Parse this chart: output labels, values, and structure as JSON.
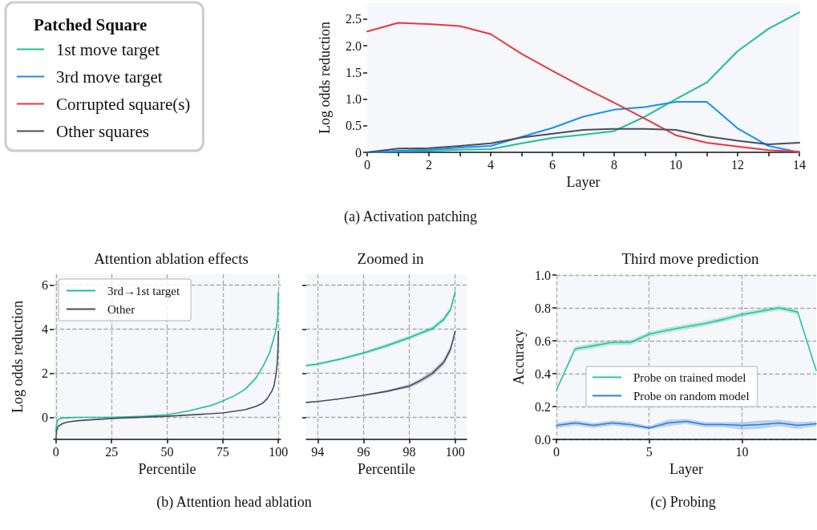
{
  "chart_data": [
    {
      "type": "line",
      "xlabel": "Layer",
      "ylabel": "Log odds reduction",
      "legend_title": "Patched Square",
      "legend": "left",
      "marker": "none",
      "grid": false,
      "x": [
        0,
        1,
        2,
        3,
        4,
        5,
        6,
        7,
        8,
        9,
        10,
        11,
        12,
        13,
        14
      ],
      "xlim": [
        0,
        14
      ],
      "xticks": [
        0,
        {
          "value": 1,
          "label": null
        },
        2,
        {
          "value": 3,
          "label": null
        },
        4,
        {
          "value": 5,
          "label": null
        },
        6,
        {
          "value": 7,
          "label": null
        },
        8,
        {
          "value": 9,
          "label": null
        },
        10,
        {
          "value": 11,
          "label": null
        },
        12,
        {
          "value": 13,
          "label": null
        },
        14
      ],
      "ylim": [
        0,
        2.8
      ],
      "yticks": [
        {
          "value": 0,
          "label": "0"
        },
        0.5,
        {
          "value": 1,
          "label": "1.0"
        },
        1.5,
        {
          "value": 2,
          "label": "2.0"
        },
        2.5
      ],
      "series": [
        {
          "name": "1st move target",
          "color": "#1fbf95",
          "values": [
            0,
            0.02,
            0.03,
            0.05,
            0.06,
            0.17,
            0.27,
            0.33,
            0.4,
            0.67,
            1.0,
            1.31,
            1.9,
            2.32,
            2.63
          ]
        },
        {
          "name": "3rd move target",
          "color": "#1a8cff",
          "values": [
            0,
            0.03,
            0.05,
            0.09,
            0.12,
            0.29,
            0.46,
            0.67,
            0.8,
            0.85,
            0.95,
            0.95,
            0.45,
            0.12,
            0
          ]
        },
        {
          "name": "Corrupted square(s)",
          "color": "#e8383d",
          "values": [
            2.27,
            2.43,
            2.41,
            2.37,
            2.22,
            1.85,
            1.53,
            1.22,
            0.93,
            0.63,
            0.32,
            0.18,
            0.11,
            0.04,
            0.01
          ]
        },
        {
          "name": "Other squares",
          "color": "#4a4f5a",
          "values": [
            0,
            0.07,
            0.08,
            0.12,
            0.17,
            0.28,
            0.35,
            0.42,
            0.44,
            0.44,
            0.42,
            0.3,
            0.22,
            0.15,
            0.18
          ]
        }
      ],
      "annotations": [
        "(a) Activation patching"
      ]
    },
    {
      "type": "line",
      "title": "Attention ablation effects",
      "xlabel": "Percentile",
      "ylabel": "Log odds reduction",
      "legend": "top left",
      "marker": "none",
      "grid": true,
      "xlim": [
        -1,
        101
      ],
      "xticks": [
        0,
        25,
        50,
        75,
        100
      ],
      "ylim": [
        -1,
        6.5
      ],
      "yticks": [
        0,
        2,
        4,
        6
      ],
      "series": [
        {
          "name": "3rd→1st target",
          "color": "#1fbf95",
          "x": [
            0,
            0.3,
            1,
            3,
            10,
            25,
            40,
            50,
            60,
            70,
            75,
            80,
            85,
            90,
            93,
            96,
            98,
            99,
            99.7,
            100
          ],
          "values": [
            -0.65,
            -0.3,
            -0.1,
            -0.03,
            0,
            0,
            0.05,
            0.12,
            0.3,
            0.55,
            0.75,
            0.97,
            1.27,
            1.8,
            2.3,
            2.92,
            3.62,
            4.03,
            4.6,
            5.7
          ]
        },
        {
          "name": "Other",
          "color": "#4a4f5a",
          "x": [
            0,
            0.3,
            1,
            3,
            5,
            10,
            25,
            50,
            75,
            85,
            90,
            93,
            95,
            97,
            98,
            99,
            99.5,
            99.8,
            100
          ],
          "values": [
            -1.0,
            -0.6,
            -0.4,
            -0.28,
            -0.22,
            -0.15,
            -0.05,
            0.05,
            0.2,
            0.35,
            0.5,
            0.65,
            0.85,
            1.18,
            1.42,
            2.0,
            2.5,
            3.1,
            3.9
          ]
        }
      ],
      "annotations": [
        "(b) Attention head ablation"
      ]
    },
    {
      "type": "line",
      "title": "Zoomed in",
      "xlabel": "Percentile",
      "tick_labels": "x",
      "marker": "none",
      "grid": true,
      "xlim": [
        93.5,
        100.5
      ],
      "xticks": [
        94,
        96,
        98,
        100
      ],
      "ylim": [
        -1,
        6.5
      ],
      "yticks": [
        0,
        2,
        4,
        6
      ],
      "series": [
        {
          "color": "#1fbf95",
          "x": [
            93.5,
            94,
            95,
            96,
            97,
            98,
            99,
            99.5,
            99.8,
            100
          ],
          "values": [
            2.35,
            2.42,
            2.65,
            2.92,
            3.25,
            3.62,
            4.03,
            4.45,
            4.9,
            5.7
          ],
          "lower": [
            2.3,
            2.37,
            2.59,
            2.85,
            3.16,
            3.53,
            3.93,
            4.33,
            4.8,
            5.65
          ],
          "upper": [
            2.4,
            2.47,
            2.71,
            2.99,
            3.34,
            3.71,
            4.13,
            4.57,
            5.0,
            5.75
          ]
        },
        {
          "color": "#4a4f5a",
          "x": [
            93.5,
            94,
            95,
            96,
            97,
            98,
            98.5,
            99,
            99.5,
            99.8,
            100
          ],
          "values": [
            0.68,
            0.72,
            0.85,
            1.0,
            1.18,
            1.42,
            1.68,
            2.0,
            2.5,
            3.1,
            3.9
          ],
          "lower": [
            0.66,
            0.7,
            0.83,
            0.97,
            1.13,
            1.34,
            1.58,
            1.88,
            2.37,
            2.95,
            3.8
          ],
          "upper": [
            0.7,
            0.74,
            0.87,
            1.03,
            1.23,
            1.5,
            1.78,
            2.12,
            2.63,
            3.25,
            4.0
          ]
        }
      ]
    },
    {
      "type": "line",
      "title": "Third move prediction",
      "xlabel": "Layer",
      "ylabel": "Accuracy",
      "legend": "bottom",
      "marker": "none",
      "grid": true,
      "x": [
        0,
        1,
        2,
        3,
        4,
        5,
        6,
        7,
        8,
        9,
        10,
        11,
        12,
        13,
        14
      ],
      "xlim": [
        0,
        14
      ],
      "xticks": [
        0,
        5,
        10
      ],
      "ylim": [
        0,
        1
      ],
      "yticks": [
        {
          "value": 0,
          "label": "0.0"
        },
        0.2,
        0.4,
        0.6,
        0.8,
        {
          "value": 1,
          "label": "1.0"
        }
      ],
      "series": [
        {
          "name": "Probe on trained model",
          "color": "#2ec4a0",
          "values": [
            0.3,
            0.55,
            0.57,
            0.59,
            0.59,
            0.64,
            0.665,
            0.685,
            0.705,
            0.73,
            0.76,
            0.78,
            0.8,
            0.775,
            0.42
          ],
          "lower": [
            0.29,
            0.535,
            0.555,
            0.575,
            0.575,
            0.625,
            0.65,
            0.67,
            0.69,
            0.715,
            0.745,
            0.765,
            0.785,
            0.76,
            0.41
          ],
          "upper": [
            0.31,
            0.565,
            0.585,
            0.605,
            0.605,
            0.655,
            0.68,
            0.7,
            0.72,
            0.745,
            0.775,
            0.795,
            0.815,
            0.79,
            0.43
          ]
        },
        {
          "name": "Probe on random model",
          "color": "#2d7fd8",
          "values": [
            0.085,
            0.1,
            0.085,
            0.1,
            0.09,
            0.07,
            0.1,
            0.11,
            0.09,
            0.09,
            0.085,
            0.09,
            0.1,
            0.085,
            0.095
          ],
          "lower": [
            0.07,
            0.085,
            0.07,
            0.085,
            0.075,
            0.06,
            0.08,
            0.095,
            0.075,
            0.075,
            0.06,
            0.065,
            0.08,
            0.065,
            0.08
          ],
          "upper": [
            0.1,
            0.115,
            0.1,
            0.115,
            0.105,
            0.08,
            0.12,
            0.125,
            0.105,
            0.105,
            0.105,
            0.115,
            0.12,
            0.105,
            0.11
          ]
        }
      ],
      "annotations": [
        "(c) Probing"
      ]
    }
  ]
}
